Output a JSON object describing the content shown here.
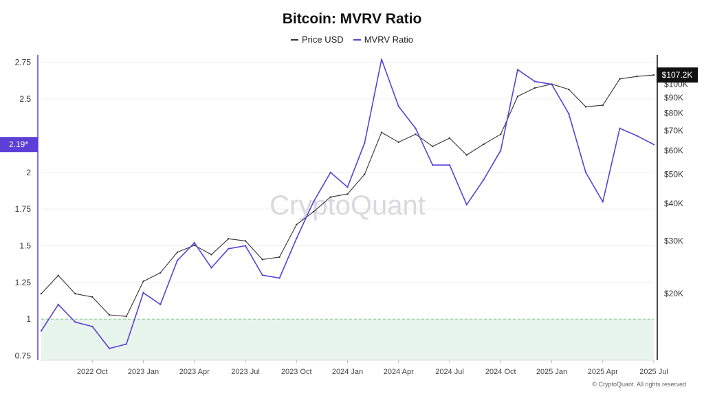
{
  "chart_data": {
    "type": "line",
    "title": "Bitcoin: MVRV Ratio",
    "legend": [
      "Price USD",
      "MVRV Ratio"
    ],
    "legend_placement": "top-center",
    "grid": true,
    "left_axis": {
      "ticks": [
        "0.75",
        "1",
        "1.25",
        "1.5",
        "1.75",
        "2",
        "2.5",
        "2.75"
      ],
      "tick_values": [
        0.75,
        1,
        1.25,
        1.5,
        1.75,
        2,
        2.5,
        2.75
      ],
      "range": [
        0.72,
        2.8
      ],
      "current_label": "2.19*",
      "current_value": 2.19
    },
    "right_axis": {
      "scale": "log",
      "ticks": [
        "$20K",
        "$30K",
        "$40K",
        "$50K",
        "$60K",
        "$70K",
        "$80K",
        "$90K",
        "$100K"
      ],
      "tick_values": [
        20000,
        30000,
        40000,
        50000,
        60000,
        70000,
        80000,
        90000,
        100000
      ],
      "current_label": "$107.2K",
      "current_value": 107200
    },
    "x_axis": {
      "ticks": [
        "2022 Oct",
        "2023 Jan",
        "2023 Apr",
        "2023 Jul",
        "2023 Oct",
        "2024 Jan",
        "2024 Apr",
        "2024 Jul",
        "2024 Oct",
        "2025 Jan",
        "2025 Apr",
        "2025 Jul"
      ],
      "range": [
        "2022-07",
        "2025-07"
      ]
    },
    "reference_line": {
      "value": 1,
      "style": "dashed",
      "color": "#7ccf8a",
      "shaded_below": true
    },
    "series": [
      {
        "name": "Price USD",
        "axis": "right",
        "color": "#333333",
        "x": [
          "2022-07",
          "2022-08",
          "2022-09",
          "2022-10",
          "2022-11",
          "2022-12",
          "2023-01",
          "2023-02",
          "2023-03",
          "2023-04",
          "2023-05",
          "2023-06",
          "2023-07",
          "2023-08",
          "2023-09",
          "2023-10",
          "2023-11",
          "2023-12",
          "2024-01",
          "2024-02",
          "2024-03",
          "2024-04",
          "2024-05",
          "2024-06",
          "2024-07",
          "2024-08",
          "2024-09",
          "2024-10",
          "2024-11",
          "2024-12",
          "2025-01",
          "2025-02",
          "2025-03",
          "2025-04",
          "2025-05",
          "2025-06",
          "2025-07"
        ],
        "values": [
          20000,
          23000,
          20000,
          19500,
          17000,
          16800,
          22000,
          23500,
          27500,
          29000,
          27000,
          30500,
          30000,
          26000,
          26500,
          34000,
          37500,
          42000,
          43000,
          50000,
          69000,
          64000,
          68000,
          62000,
          66000,
          58000,
          63000,
          68000,
          91000,
          97000,
          100000,
          96000,
          84000,
          85000,
          104000,
          106000,
          107200
        ]
      },
      {
        "name": "MVRV Ratio",
        "axis": "left",
        "color": "#5b3fd6",
        "x": [
          "2022-07",
          "2022-08",
          "2022-09",
          "2022-10",
          "2022-11",
          "2022-12",
          "2023-01",
          "2023-02",
          "2023-03",
          "2023-04",
          "2023-05",
          "2023-06",
          "2023-07",
          "2023-08",
          "2023-09",
          "2023-10",
          "2023-11",
          "2023-12",
          "2024-01",
          "2024-02",
          "2024-03",
          "2024-04",
          "2024-05",
          "2024-06",
          "2024-07",
          "2024-08",
          "2024-09",
          "2024-10",
          "2024-11",
          "2024-12",
          "2025-01",
          "2025-02",
          "2025-03",
          "2025-04",
          "2025-05",
          "2025-06",
          "2025-07"
        ],
        "values": [
          0.92,
          1.1,
          0.98,
          0.95,
          0.8,
          0.83,
          1.18,
          1.1,
          1.4,
          1.52,
          1.35,
          1.48,
          1.5,
          1.3,
          1.28,
          1.55,
          1.8,
          2.0,
          1.9,
          2.2,
          2.77,
          2.45,
          2.3,
          2.05,
          2.05,
          1.78,
          1.95,
          2.15,
          2.7,
          2.62,
          2.6,
          2.4,
          2.0,
          1.8,
          2.3,
          2.25,
          2.19
        ]
      }
    ]
  },
  "watermark": "CryptoQuant",
  "copyright": "© CryptoQuant. All rights reserved"
}
